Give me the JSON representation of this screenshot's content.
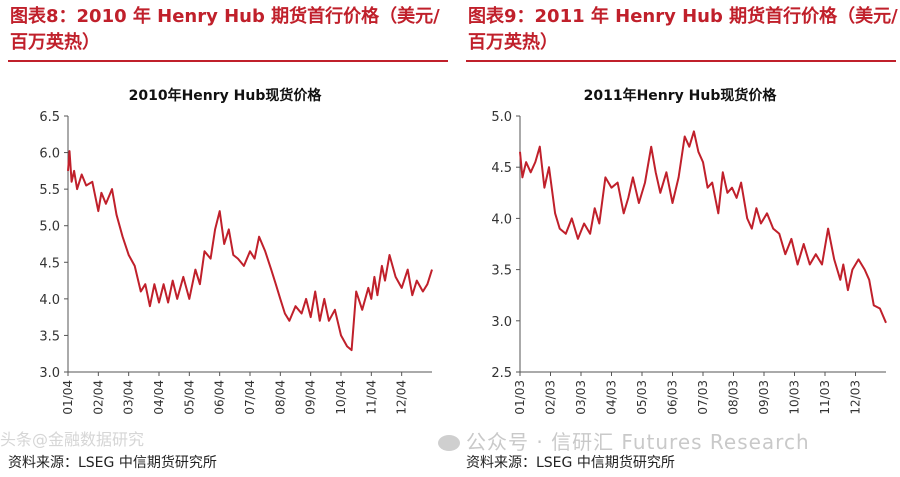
{
  "panels": [
    {
      "figure_title": "图表8：2010 年 Henry Hub 期货首行价格（美元/百万英热）",
      "source": "资料来源：LSEG 中信期货研究所"
    },
    {
      "figure_title": "图表9：2011 年 Henry Hub 期货首行价格（美元/百万英热）",
      "source": "资料来源：LSEG 中信期货研究所"
    }
  ],
  "watermark": "公众号 · 信研汇 Futures Research",
  "watermark_left": "头条@金融数据研究",
  "colors": {
    "line": "#c0202b",
    "title": "#c0202b",
    "axis": "#555555"
  },
  "chart_data": [
    {
      "type": "line",
      "title": "2010年Henry Hub现货价格",
      "xlabel": "",
      "ylabel": "",
      "ylim": [
        3.0,
        6.5
      ],
      "yticks": [
        "3.0",
        "3.5",
        "4.0",
        "4.5",
        "5.0",
        "5.5",
        "6.0",
        "6.5"
      ],
      "xticks": [
        "01/04",
        "02/04",
        "03/04",
        "04/04",
        "05/04",
        "06/04",
        "07/04",
        "08/04",
        "09/04",
        "10/04",
        "11/04",
        "12/04"
      ],
      "x_month_range": [
        0,
        12
      ],
      "grid": false,
      "series": [
        {
          "x": [
            0.0,
            0.05,
            0.12,
            0.2,
            0.3,
            0.45,
            0.6,
            0.8,
            1.0,
            1.1,
            1.25,
            1.45,
            1.6,
            1.8,
            2.0,
            2.2,
            2.4,
            2.55,
            2.7,
            2.85,
            3.0,
            3.15,
            3.3,
            3.45,
            3.6,
            3.8,
            4.0,
            4.2,
            4.35,
            4.5,
            4.7,
            4.85,
            5.0,
            5.15,
            5.3,
            5.45,
            5.6,
            5.8,
            6.0,
            6.15,
            6.3,
            6.5,
            6.7,
            6.85,
            7.0,
            7.15,
            7.3,
            7.5,
            7.7,
            7.85,
            8.0,
            8.15,
            8.3,
            8.45,
            8.6,
            8.8,
            9.0,
            9.2,
            9.35,
            9.5,
            9.7,
            9.9,
            10.0,
            10.1,
            10.2,
            10.35,
            10.45,
            10.6,
            10.8,
            11.0,
            11.2,
            11.35,
            11.5,
            11.7,
            11.85,
            12.0
          ],
          "y": [
            5.75,
            6.02,
            5.6,
            5.75,
            5.5,
            5.7,
            5.55,
            5.6,
            5.2,
            5.45,
            5.3,
            5.5,
            5.15,
            4.85,
            4.6,
            4.45,
            4.1,
            4.2,
            3.9,
            4.2,
            3.95,
            4.2,
            3.95,
            4.25,
            4.0,
            4.3,
            4.0,
            4.4,
            4.2,
            4.65,
            4.55,
            4.95,
            5.2,
            4.75,
            4.95,
            4.6,
            4.55,
            4.45,
            4.65,
            4.55,
            4.85,
            4.65,
            4.4,
            4.2,
            4.0,
            3.8,
            3.7,
            3.9,
            3.8,
            4.0,
            3.75,
            4.1,
            3.7,
            4.0,
            3.7,
            3.85,
            3.5,
            3.35,
            3.3,
            4.1,
            3.85,
            4.15,
            4.0,
            4.3,
            4.05,
            4.45,
            4.25,
            4.6,
            4.3,
            4.15,
            4.4,
            4.05,
            4.25,
            4.1,
            4.2,
            4.4
          ]
        }
      ]
    },
    {
      "type": "line",
      "title": "2011年Henry Hub现货价格",
      "xlabel": "",
      "ylabel": "",
      "ylim": [
        2.5,
        5.0
      ],
      "yticks": [
        "2.5",
        "3.0",
        "3.5",
        "4.0",
        "4.5",
        "5.0"
      ],
      "xticks": [
        "01/03",
        "02/03",
        "03/03",
        "04/03",
        "05/03",
        "06/03",
        "07/03",
        "08/03",
        "09/03",
        "10/03",
        "11/03",
        "12/03"
      ],
      "x_month_range": [
        0,
        12
      ],
      "grid": false,
      "series": [
        {
          "x": [
            0.0,
            0.08,
            0.2,
            0.35,
            0.5,
            0.65,
            0.8,
            0.95,
            1.15,
            1.3,
            1.5,
            1.7,
            1.9,
            2.1,
            2.3,
            2.45,
            2.6,
            2.8,
            3.0,
            3.2,
            3.4,
            3.55,
            3.7,
            3.9,
            4.1,
            4.3,
            4.45,
            4.6,
            4.8,
            5.0,
            5.2,
            5.4,
            5.55,
            5.7,
            5.85,
            6.0,
            6.15,
            6.3,
            6.5,
            6.65,
            6.8,
            6.95,
            7.1,
            7.25,
            7.45,
            7.6,
            7.75,
            7.9,
            8.1,
            8.3,
            8.5,
            8.7,
            8.9,
            9.1,
            9.3,
            9.5,
            9.7,
            9.9,
            10.1,
            10.3,
            10.5,
            10.6,
            10.75,
            10.9,
            11.1,
            11.3,
            11.45,
            11.6,
            11.8,
            12.0
          ],
          "y": [
            4.65,
            4.4,
            4.55,
            4.45,
            4.55,
            4.7,
            4.3,
            4.5,
            4.05,
            3.9,
            3.85,
            4.0,
            3.8,
            3.95,
            3.85,
            4.1,
            3.95,
            4.4,
            4.3,
            4.35,
            4.05,
            4.2,
            4.4,
            4.15,
            4.35,
            4.7,
            4.45,
            4.25,
            4.45,
            4.15,
            4.4,
            4.8,
            4.7,
            4.85,
            4.65,
            4.55,
            4.3,
            4.35,
            4.05,
            4.45,
            4.25,
            4.3,
            4.2,
            4.35,
            4.0,
            3.9,
            4.1,
            3.95,
            4.05,
            3.9,
            3.85,
            3.65,
            3.8,
            3.55,
            3.75,
            3.55,
            3.65,
            3.55,
            3.9,
            3.6,
            3.4,
            3.55,
            3.3,
            3.5,
            3.6,
            3.5,
            3.4,
            3.15,
            3.12,
            2.98
          ]
        }
      ]
    }
  ]
}
